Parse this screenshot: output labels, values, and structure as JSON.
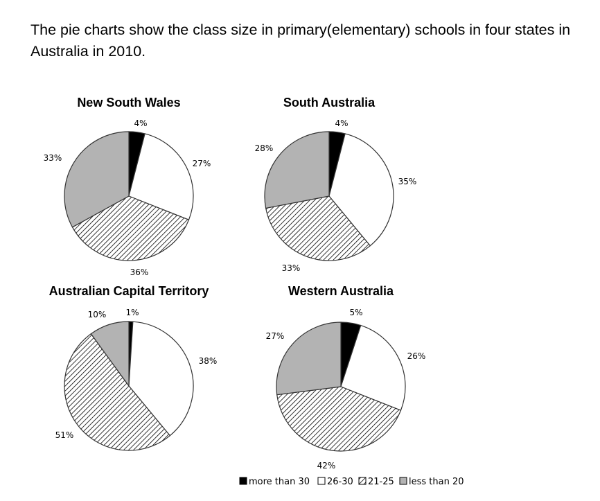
{
  "prompt": "The pie charts show the class size in primary(elementary) schools in four states in Australia in 2010.",
  "legend": [
    {
      "label": "more than 30",
      "fill": "black"
    },
    {
      "label": "26-30",
      "fill": "white"
    },
    {
      "label": "21-25",
      "fill": "hatch"
    },
    {
      "label": "less than 20",
      "fill": "gray"
    }
  ],
  "colors": {
    "black": "#000000",
    "white": "#ffffff",
    "gray": "#b3b3b3",
    "stroke": "#333333"
  },
  "chart_data": [
    {
      "type": "pie",
      "title": "New South Wales",
      "labels": [
        "more than 30",
        "26-30",
        "21-25",
        "less than 20"
      ],
      "values": [
        4,
        27,
        36,
        33
      ],
      "value_labels": [
        "4%",
        "27%",
        "36%",
        "33%"
      ]
    },
    {
      "type": "pie",
      "title": "South Australia",
      "labels": [
        "more than 30",
        "26-30",
        "21-25",
        "less than 20"
      ],
      "values": [
        4,
        35,
        33,
        28
      ],
      "value_labels": [
        "4%",
        "35%",
        "33%",
        "28%"
      ]
    },
    {
      "type": "pie",
      "title": "Australian Capital Territory",
      "labels": [
        "more than 30",
        "26-30",
        "21-25",
        "less than 20"
      ],
      "values": [
        1,
        38,
        51,
        10
      ],
      "value_labels": [
        "1%",
        "38%",
        "51%",
        "10%"
      ]
    },
    {
      "type": "pie",
      "title": "Western Australia",
      "labels": [
        "more than 30",
        "26-30",
        "21-25",
        "less than 20"
      ],
      "values": [
        5,
        26,
        42,
        27
      ],
      "value_labels": [
        "5%",
        "26%",
        "42%",
        "27%"
      ]
    }
  ]
}
